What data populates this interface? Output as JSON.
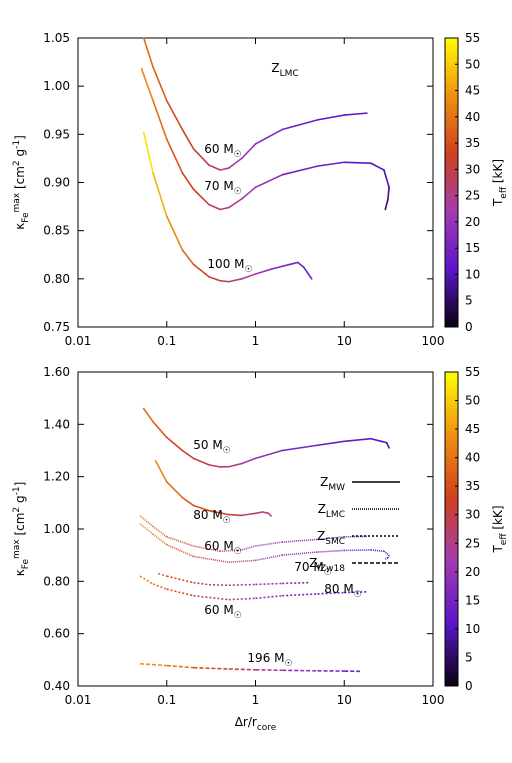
{
  "chart_data": [
    {
      "type": "line",
      "log_x": true,
      "ylabel": [
        {
          "text": "κ"
        },
        {
          "text": "Fe",
          "pos": "sub"
        },
        {
          "text": "max",
          "pos": "sup"
        },
        {
          "text": " [cm"
        },
        {
          "text": "2",
          "pos": "sup"
        },
        {
          "text": " g"
        },
        {
          "text": "-1",
          "pos": "sup"
        },
        {
          "text": "]"
        }
      ],
      "xlim": [
        0.01,
        100
      ],
      "xticks": [
        0.01,
        0.1,
        1,
        10,
        100
      ],
      "ylim": [
        0.75,
        1.05
      ],
      "yticks": [
        {
          "value": 0.75,
          "label": "0.75"
        },
        {
          "value": 0.8,
          "label": "0.80"
        },
        {
          "value": 0.85,
          "label": "0.85"
        },
        {
          "value": 0.9,
          "label": "0.90"
        },
        {
          "value": 0.95,
          "label": "0.95"
        },
        {
          "value": 1.0,
          "label": "1.00"
        },
        {
          "value": 1.05,
          "label": "1.05"
        }
      ],
      "colorbar": {
        "label": [
          {
            "text": "T"
          },
          {
            "text": "eff",
            "pos": "sub"
          },
          {
            "text": " [kK]"
          }
        ],
        "clim": [
          0,
          55
        ],
        "cticks": [
          0,
          5,
          10,
          15,
          20,
          25,
          30,
          35,
          40,
          45,
          50,
          55
        ],
        "colormap": [
          "#0a0010",
          "#5b16c9",
          "#a33cb0",
          "#d0401e",
          "#f09010",
          "#ffff00"
        ]
      },
      "annotations": [
        {
          "runs": [
            {
              "text": "Z"
            },
            {
              "text": "LMC",
              "pos": "sub"
            }
          ]
        },
        {
          "runs": [
            {
              "text": "60 M"
            },
            {
              "text": "☉",
              "pos": "sub"
            }
          ]
        },
        {
          "runs": [
            {
              "text": "70 M"
            },
            {
              "text": "☉",
              "pos": "sub"
            }
          ]
        },
        {
          "runs": [
            {
              "text": "100 M"
            },
            {
              "text": "☉",
              "pos": "sub"
            }
          ]
        }
      ],
      "series": [
        {
          "dash": "none",
          "tracks": [
            {
              "x": [
                0.055,
                0.07,
                0.1,
                0.15,
                0.2,
                0.3,
                0.4,
                0.5,
                0.7,
                1,
                2,
                5,
                10,
                18
              ],
              "y": [
                1.05,
                1.02,
                0.985,
                0.955,
                0.935,
                0.918,
                0.913,
                0.915,
                0.925,
                0.94,
                0.955,
                0.965,
                0.97,
                0.972
              ],
              "teff": [
                40,
                38,
                36,
                33,
                31,
                29,
                27,
                25,
                22,
                19,
                15,
                13,
                12,
                11
              ]
            },
            {
              "x": [
                0.052,
                0.07,
                0.1,
                0.15,
                0.2,
                0.3,
                0.4,
                0.5,
                0.7,
                1,
                2,
                5,
                10,
                20,
                28,
                32,
                31,
                29
              ],
              "y": [
                1.018,
                0.985,
                0.945,
                0.91,
                0.893,
                0.877,
                0.872,
                0.874,
                0.883,
                0.895,
                0.908,
                0.917,
                0.921,
                0.92,
                0.913,
                0.895,
                0.882,
                0.872
              ],
              "teff": [
                44,
                41,
                38,
                35,
                32,
                30,
                28,
                26,
                23,
                20,
                16,
                13,
                12,
                11,
                10,
                8,
                6,
                5
              ]
            },
            {
              "x": [
                0.055,
                0.07,
                0.1,
                0.15,
                0.2,
                0.3,
                0.4,
                0.5,
                0.7,
                1,
                1.5,
                2,
                3,
                3.5,
                4.3
              ],
              "y": [
                0.952,
                0.91,
                0.865,
                0.83,
                0.815,
                0.802,
                0.798,
                0.797,
                0.8,
                0.805,
                0.81,
                0.813,
                0.817,
                0.812,
                0.8
              ],
              "teff": [
                54,
                50,
                45,
                40,
                36,
                32,
                30,
                28,
                25,
                22,
                19,
                17,
                15,
                14,
                12
              ]
            }
          ]
        }
      ]
    },
    {
      "type": "line",
      "log_x": true,
      "xlabel": [
        {
          "text": "Δr/r"
        },
        {
          "text": "core",
          "pos": "sub"
        }
      ],
      "ylabel": [
        {
          "text": "κ"
        },
        {
          "text": "Fe",
          "pos": "sub"
        },
        {
          "text": "max",
          "pos": "sup"
        },
        {
          "text": " [cm"
        },
        {
          "text": "2",
          "pos": "sup"
        },
        {
          "text": " g"
        },
        {
          "text": "-1",
          "pos": "sup"
        },
        {
          "text": "]"
        }
      ],
      "xlim": [
        0.01,
        100
      ],
      "xticks": [
        0.01,
        0.1,
        1,
        10,
        100
      ],
      "ylim": [
        0.4,
        1.6
      ],
      "yticks": [
        {
          "value": 0.4,
          "label": "0.40"
        },
        {
          "value": 0.6,
          "label": "0.60"
        },
        {
          "value": 0.8,
          "label": "0.80"
        },
        {
          "value": 1.0,
          "label": "1.00"
        },
        {
          "value": 1.2,
          "label": "1.20"
        },
        {
          "value": 1.4,
          "label": "1.40"
        },
        {
          "value": 1.6,
          "label": "1.60"
        }
      ],
      "colorbar": {
        "label": [
          {
            "text": "T"
          },
          {
            "text": "eff",
            "pos": "sub"
          },
          {
            "text": " [kK]"
          }
        ],
        "clim": [
          0,
          55
        ],
        "cticks": [
          0,
          5,
          10,
          15,
          20,
          25,
          30,
          35,
          40,
          45,
          50,
          55
        ],
        "colormap": [
          "#0a0010",
          "#5b16c9",
          "#a33cb0",
          "#d0401e",
          "#f09010",
          "#ffff00"
        ]
      },
      "annotations": [
        {
          "runs": [
            {
              "text": "50 M"
            },
            {
              "text": "☉",
              "pos": "sub"
            }
          ]
        },
        {
          "runs": [
            {
              "text": "80 M"
            },
            {
              "text": "☉",
              "pos": "sub"
            }
          ]
        },
        {
          "runs": [
            {
              "text": "60 M"
            },
            {
              "text": "☉",
              "pos": "sub"
            }
          ]
        },
        {
          "runs": [
            {
              "text": "70 M"
            },
            {
              "text": "☉",
              "pos": "sub"
            }
          ]
        },
        {
          "runs": [
            {
              "text": "60 M"
            },
            {
              "text": "☉",
              "pos": "sub"
            }
          ]
        },
        {
          "runs": [
            {
              "text": "80 M"
            },
            {
              "text": "☉",
              "pos": "sub"
            }
          ]
        },
        {
          "runs": [
            {
              "text": "196 M"
            },
            {
              "text": "☉",
              "pos": "sub"
            }
          ]
        }
      ],
      "series": [
        {
          "name": [
            {
              "text": "Z"
            },
            {
              "text": "MW",
              "pos": "sub"
            }
          ],
          "dash": "none",
          "tracks": [
            {
              "x": [
                0.055,
                0.07,
                0.1,
                0.15,
                0.2,
                0.3,
                0.4,
                0.5,
                0.7,
                1,
                2,
                5,
                10,
                20,
                30,
                32
              ],
              "y": [
                1.46,
                1.41,
                1.35,
                1.3,
                1.27,
                1.245,
                1.237,
                1.238,
                1.25,
                1.27,
                1.3,
                1.32,
                1.335,
                1.345,
                1.33,
                1.31
              ],
              "teff": [
                40,
                38,
                35,
                33,
                31,
                29,
                28,
                27,
                24,
                21,
                17,
                14,
                13,
                12,
                10,
                8
              ]
            },
            {
              "x": [
                0.075,
                0.1,
                0.15,
                0.2,
                0.3,
                0.5,
                0.7,
                1,
                1.2,
                1.4,
                1.5
              ],
              "y": [
                1.26,
                1.18,
                1.12,
                1.09,
                1.07,
                1.055,
                1.052,
                1.06,
                1.065,
                1.06,
                1.05
              ],
              "teff": [
                44,
                41,
                38,
                36,
                34,
                31,
                29,
                27,
                26,
                26,
                25
              ]
            }
          ]
        },
        {
          "name": [
            {
              "text": "Z"
            },
            {
              "text": "LMC",
              "pos": "sub"
            }
          ],
          "dash": "1 1",
          "tracks": [
            {
              "x": [
                0.05,
                0.07,
                0.1,
                0.2,
                0.4,
                0.7,
                1,
                2,
                5,
                10,
                18
              ],
              "y": [
                1.05,
                1.01,
                0.97,
                0.935,
                0.915,
                0.92,
                0.935,
                0.95,
                0.96,
                0.97,
                0.972
              ],
              "teff": [
                42,
                39,
                36,
                32,
                28,
                24,
                21,
                17,
                14,
                13,
                12
              ]
            },
            {
              "x": [
                0.05,
                0.07,
                0.1,
                0.2,
                0.5,
                1,
                2,
                5,
                10,
                20,
                28,
                32,
                31,
                29
              ],
              "y": [
                1.02,
                0.98,
                0.94,
                0.895,
                0.873,
                0.88,
                0.9,
                0.912,
                0.918,
                0.92,
                0.915,
                0.9,
                0.89,
                0.885
              ],
              "teff": [
                44,
                41,
                38,
                33,
                28,
                23,
                18,
                15,
                13,
                12,
                11,
                9,
                7,
                6
              ]
            }
          ]
        },
        {
          "name": [
            {
              "text": "Z"
            },
            {
              "text": "SMC",
              "pos": "sub"
            }
          ],
          "dash": "2 2",
          "tracks": [
            {
              "x": [
                0.08,
                0.1,
                0.2,
                0.3,
                0.5,
                1,
                2,
                4
              ],
              "y": [
                0.83,
                0.82,
                0.795,
                0.787,
                0.785,
                0.788,
                0.792,
                0.795
              ],
              "teff": [
                40,
                38,
                32,
                29,
                26,
                22,
                18,
                15
              ]
            },
            {
              "x": [
                0.05,
                0.07,
                0.1,
                0.2,
                0.5,
                1,
                2,
                5,
                10,
                18
              ],
              "y": [
                0.82,
                0.79,
                0.77,
                0.745,
                0.73,
                0.735,
                0.745,
                0.752,
                0.757,
                0.76
              ],
              "teff": [
                43,
                40,
                37,
                32,
                26,
                22,
                17,
                14,
                13,
                12
              ]
            }
          ]
        },
        {
          "name": [
            {
              "text": "Z"
            },
            {
              "text": "IZw18",
              "pos": "sub"
            }
          ],
          "dash": "4 2",
          "tracks": [
            {
              "x": [
                0.05,
                0.1,
                0.2,
                0.5,
                1,
                2,
                5,
                10,
                15
              ],
              "y": [
                0.485,
                0.478,
                0.47,
                0.465,
                0.462,
                0.46,
                0.458,
                0.457,
                0.456
              ],
              "teff": [
                46,
                42,
                38,
                32,
                27,
                22,
                17,
                14,
                13
              ]
            }
          ]
        }
      ]
    }
  ]
}
